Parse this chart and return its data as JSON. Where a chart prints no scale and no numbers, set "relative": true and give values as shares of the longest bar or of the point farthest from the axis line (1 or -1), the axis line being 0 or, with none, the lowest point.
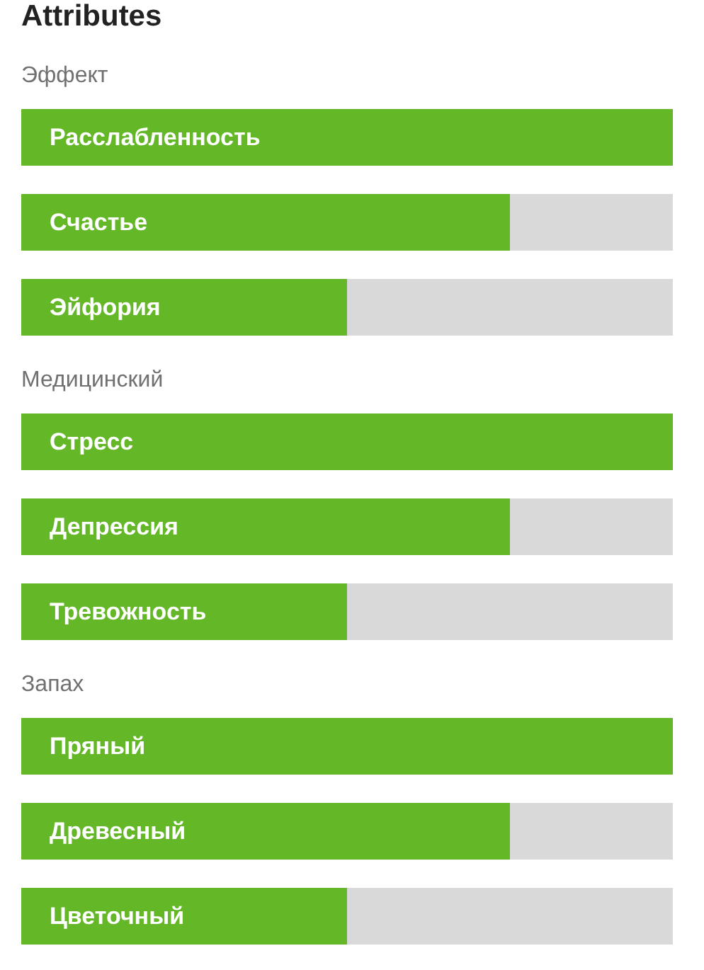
{
  "chart_data": [
    {
      "type": "bar",
      "orientation": "horizontal",
      "relative": true,
      "title": "Attributes",
      "subtitle": "Эффект",
      "categories": [
        "Расслабленность",
        "Счастье",
        "Эйфория"
      ],
      "values": [
        1,
        0.75,
        0.5
      ],
      "color": "#64b828"
    },
    {
      "type": "bar",
      "orientation": "horizontal",
      "relative": true,
      "subtitle": "Медицинский",
      "categories": [
        "Стресс",
        "Депрессия",
        "Тревожность"
      ],
      "values": [
        1,
        0.75,
        0.5
      ],
      "color": "#64b828"
    },
    {
      "type": "bar",
      "orientation": "horizontal",
      "relative": true,
      "subtitle": "Запах",
      "categories": [
        "Пряный",
        "Древесный",
        "Цветочный"
      ],
      "values": [
        1,
        0.75,
        0.5
      ],
      "color": "#64b828"
    }
  ]
}
